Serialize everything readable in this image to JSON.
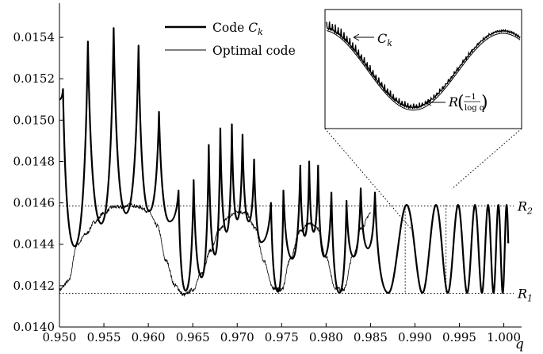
{
  "chart_data": {
    "type": "line",
    "xlabel": "q",
    "ylabel": "",
    "xlim": [
      0.95,
      1.002
    ],
    "ylim": [
      0.014,
      0.01555
    ],
    "x_ticks": [
      "0.950",
      "0.955",
      "0.960",
      "0.965",
      "0.970",
      "0.975",
      "0.980",
      "0.985",
      "0.990",
      "0.995",
      "1.000"
    ],
    "y_ticks": [
      "0.0140",
      "0.0142",
      "0.0144",
      "0.0146",
      "0.0148",
      "0.0150",
      "0.0152",
      "0.0154"
    ],
    "grid": false,
    "legend_position": "top-center",
    "reference_lines": [
      {
        "name": "R_2",
        "label_base": "R",
        "label_sub": "2",
        "value": 0.014585
      },
      {
        "name": "R_1",
        "label_base": "R",
        "label_sub": "1",
        "value": 0.014163
      }
    ],
    "series": [
      {
        "name": "Code C_k",
        "legend_text": "Code ",
        "legend_math": "C",
        "legend_sub": "k",
        "stroke_width": 2.2,
        "description": "piecewise envelope with sharp peaks at cusp points",
        "peaks": [
          {
            "x": 0.9504,
            "y": 0.01515
          },
          {
            "x": 0.9532,
            "y": 0.01538
          },
          {
            "x": 0.9561,
            "y": 0.015445
          },
          {
            "x": 0.9589,
            "y": 0.01536
          },
          {
            "x": 0.9612,
            "y": 0.01504
          },
          {
            "x": 0.9634,
            "y": 0.01466
          },
          {
            "x": 0.9651,
            "y": 0.01471
          },
          {
            "x": 0.9668,
            "y": 0.01488
          },
          {
            "x": 0.9681,
            "y": 0.01496
          },
          {
            "x": 0.9694,
            "y": 0.01498
          },
          {
            "x": 0.9706,
            "y": 0.01493
          },
          {
            "x": 0.9719,
            "y": 0.01481
          },
          {
            "x": 0.9738,
            "y": 0.0146
          },
          {
            "x": 0.9752,
            "y": 0.01466
          },
          {
            "x": 0.9771,
            "y": 0.01478
          },
          {
            "x": 0.9781,
            "y": 0.0148
          },
          {
            "x": 0.9791,
            "y": 0.01478
          },
          {
            "x": 0.9806,
            "y": 0.01465
          },
          {
            "x": 0.9823,
            "y": 0.01461
          },
          {
            "x": 0.9839,
            "y": 0.01467
          },
          {
            "x": 0.9855,
            "y": 0.01465
          }
        ],
        "valleys": [
          {
            "x": 0.9517,
            "y": 0.01439
          },
          {
            "x": 0.9547,
            "y": 0.0145
          },
          {
            "x": 0.9575,
            "y": 0.01455
          },
          {
            "x": 0.9601,
            "y": 0.01456
          },
          {
            "x": 0.9624,
            "y": 0.01451
          },
          {
            "x": 0.9642,
            "y": 0.014175
          },
          {
            "x": 0.966,
            "y": 0.01424
          },
          {
            "x": 0.9675,
            "y": 0.01435
          },
          {
            "x": 0.9688,
            "y": 0.01446
          },
          {
            "x": 0.97,
            "y": 0.01452
          },
          {
            "x": 0.9713,
            "y": 0.01451
          },
          {
            "x": 0.9727,
            "y": 0.01441
          },
          {
            "x": 0.9746,
            "y": 0.01417
          },
          {
            "x": 0.9762,
            "y": 0.01433
          },
          {
            "x": 0.9776,
            "y": 0.01444
          },
          {
            "x": 0.9786,
            "y": 0.01446
          },
          {
            "x": 0.9798,
            "y": 0.01434
          },
          {
            "x": 0.9815,
            "y": 0.014165
          },
          {
            "x": 0.9831,
            "y": 0.01434
          },
          {
            "x": 0.9847,
            "y": 0.01438
          },
          {
            "x": 0.987,
            "y": 0.014165
          }
        ],
        "oscillation": {
          "start_x": 0.987,
          "end_x": 1.0005,
          "upper": 0.01459,
          "lower": 0.014165
        }
      },
      {
        "name": "Optimal code",
        "legend_text": "Optimal code",
        "stroke_width": 0.8,
        "description": "smooth curve R(-1/log q) with small jitter before 0.985",
        "points": [
          [
            0.95,
            0.01418
          ],
          [
            0.951,
            0.01422
          ],
          [
            0.952,
            0.0144
          ],
          [
            0.953,
            0.01445
          ],
          [
            0.954,
            0.01451
          ],
          [
            0.955,
            0.01455
          ],
          [
            0.956,
            0.01458
          ],
          [
            0.957,
            0.01458
          ],
          [
            0.958,
            0.01459
          ],
          [
            0.959,
            0.01458
          ],
          [
            0.96,
            0.01456
          ],
          [
            0.961,
            0.01449
          ],
          [
            0.962,
            0.01432
          ],
          [
            0.963,
            0.0142
          ],
          [
            0.964,
            0.014155
          ],
          [
            0.965,
            0.01418
          ],
          [
            0.966,
            0.01426
          ],
          [
            0.967,
            0.01437
          ],
          [
            0.968,
            0.01447
          ],
          [
            0.969,
            0.01453
          ],
          [
            0.97,
            0.01456
          ],
          [
            0.971,
            0.01455
          ],
          [
            0.972,
            0.01448
          ],
          [
            0.973,
            0.01432
          ],
          [
            0.974,
            0.01419
          ],
          [
            0.975,
            0.01418
          ],
          [
            0.976,
            0.01433
          ],
          [
            0.977,
            0.01446
          ],
          [
            0.978,
            0.0145
          ],
          [
            0.979,
            0.01448
          ],
          [
            0.98,
            0.01434
          ],
          [
            0.981,
            0.01419
          ],
          [
            0.982,
            0.01418
          ],
          [
            0.983,
            0.01434
          ],
          [
            0.984,
            0.01448
          ],
          [
            0.985,
            0.01455
          ]
        ]
      }
    ],
    "inset": {
      "label_ck_math": "C",
      "label_ck_sub": "k",
      "label_r_math": "R",
      "label_r_num": "−1",
      "label_r_den": "log q",
      "zoom_x_range": [
        0.9889,
        0.9935
      ]
    },
    "colors": {
      "line": "#000000",
      "background": "#ffffff"
    }
  }
}
